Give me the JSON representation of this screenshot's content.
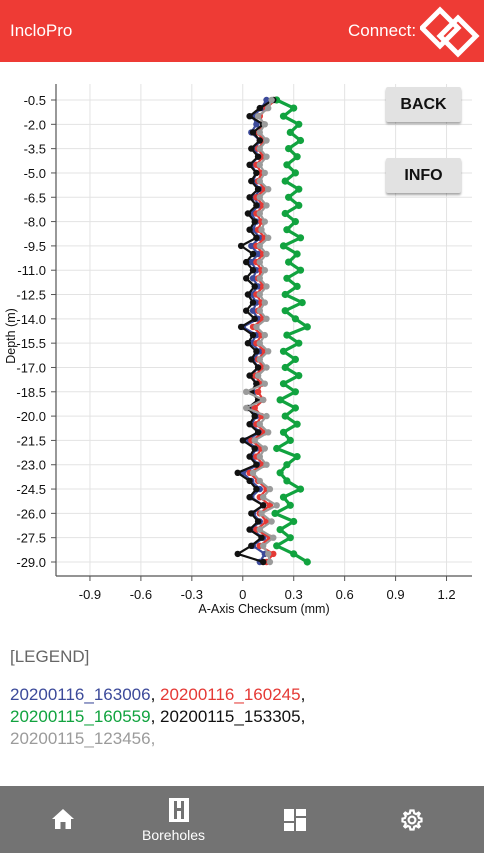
{
  "header": {
    "title": "IncloPro",
    "connect_label": "Connect:"
  },
  "buttons": {
    "back": "BACK",
    "info": "INFO"
  },
  "chart_data": {
    "type": "line",
    "title": "",
    "xlabel": "A-Axis Checksum (mm)",
    "ylabel": "Depth (m)",
    "xlim": [
      -1.1,
      1.35
    ],
    "ylim": [
      0.5,
      -29.0
    ],
    "x_ticks": [
      "-0.9",
      "-0.6",
      "-0.3",
      "0",
      "0.3",
      "0.6",
      "0.9",
      "1.2"
    ],
    "y_ticks": [
      "-0.5",
      "-2.0",
      "-3.5",
      "-5.0",
      "-6.5",
      "-8.0",
      "-9.5",
      "-11.0",
      "-12.5",
      "-14.0",
      "-15.5",
      "-17.0",
      "-18.5",
      "-20.0",
      "-21.5",
      "-23.0",
      "-24.5",
      "-26.0",
      "-27.5",
      "-29.0"
    ],
    "grid": true,
    "depth": [
      -0.5,
      -1.0,
      -1.5,
      -2.0,
      -2.5,
      -3.0,
      -3.5,
      -4.0,
      -4.5,
      -5.0,
      -5.5,
      -6.0,
      -6.5,
      -7.0,
      -7.5,
      -8.0,
      -8.5,
      -9.0,
      -9.5,
      -10.0,
      -10.5,
      -11.0,
      -11.5,
      -12.0,
      -12.5,
      -13.0,
      -13.5,
      -14.0,
      -14.5,
      -15.0,
      -15.5,
      -16.0,
      -16.5,
      -17.0,
      -17.5,
      -18.0,
      -18.5,
      -19.0,
      -19.5,
      -20.0,
      -20.5,
      -21.0,
      -21.5,
      -22.0,
      -22.5,
      -23.0,
      -23.5,
      -24.0,
      -24.5,
      -25.0,
      -25.5,
      -26.0,
      -26.5,
      -27.0,
      -27.5,
      -28.0,
      -28.5,
      -29.0
    ],
    "series": [
      {
        "name": "20200116_163006",
        "color": "#3c4a9a",
        "values": [
          0.14,
          0.11,
          0.06,
          0.08,
          0.05,
          0.1,
          0.07,
          0.09,
          0.05,
          0.08,
          0.06,
          0.1,
          0.07,
          0.09,
          0.05,
          0.08,
          0.06,
          0.1,
          0.05,
          0.09,
          0.05,
          0.08,
          0.06,
          0.09,
          0.05,
          0.08,
          0.06,
          0.09,
          0.0,
          0.08,
          0.05,
          0.1,
          0.06,
          0.09,
          0.05,
          0.08,
          0.06,
          0.09,
          0.04,
          0.08,
          0.05,
          0.1,
          0.02,
          0.08,
          0.05,
          0.09,
          0.0,
          0.05,
          0.1,
          0.05,
          0.12,
          0.06,
          0.1,
          0.05,
          0.12,
          0.06,
          0.13,
          0.1
        ]
      },
      {
        "name": "20200116_160245",
        "color": "#e53935",
        "values": [
          0.19,
          0.14,
          0.1,
          0.12,
          0.08,
          0.13,
          0.09,
          0.12,
          0.08,
          0.11,
          0.09,
          0.13,
          0.08,
          0.12,
          0.08,
          0.11,
          0.09,
          0.13,
          0.08,
          0.12,
          0.08,
          0.11,
          0.09,
          0.12,
          0.08,
          0.11,
          0.09,
          0.12,
          0.06,
          0.11,
          0.08,
          0.13,
          0.09,
          0.12,
          0.07,
          0.11,
          0.09,
          0.12,
          0.07,
          0.11,
          0.08,
          0.13,
          0.05,
          0.11,
          0.08,
          0.12,
          0.04,
          0.09,
          0.14,
          0.1,
          0.16,
          0.1,
          0.14,
          0.08,
          0.16,
          0.1,
          0.18,
          0.14
        ]
      },
      {
        "name": "20200115_160559",
        "color": "#11a33f",
        "values": [
          0.2,
          0.3,
          0.24,
          0.33,
          0.28,
          0.34,
          0.27,
          0.32,
          0.26,
          0.31,
          0.25,
          0.33,
          0.27,
          0.33,
          0.25,
          0.31,
          0.26,
          0.34,
          0.24,
          0.32,
          0.27,
          0.34,
          0.26,
          0.32,
          0.25,
          0.35,
          0.25,
          0.31,
          0.38,
          0.26,
          0.33,
          0.24,
          0.31,
          0.25,
          0.33,
          0.24,
          0.31,
          0.22,
          0.31,
          0.25,
          0.32,
          0.24,
          0.28,
          0.2,
          0.32,
          0.26,
          0.22,
          0.26,
          0.34,
          0.24,
          0.28,
          0.19,
          0.3,
          0.22,
          0.28,
          0.2,
          0.3,
          0.38
        ]
      },
      {
        "name": "20200115_153305",
        "color": "#111111",
        "values": [
          0.18,
          0.1,
          0.04,
          0.12,
          0.06,
          0.1,
          0.05,
          0.09,
          0.04,
          0.08,
          0.05,
          0.09,
          0.04,
          0.08,
          0.03,
          0.07,
          0.04,
          0.08,
          -0.01,
          0.06,
          0.02,
          0.06,
          0.02,
          0.07,
          0.03,
          0.06,
          0.02,
          0.07,
          -0.01,
          0.06,
          0.03,
          0.08,
          0.05,
          0.09,
          0.04,
          0.08,
          0.05,
          0.09,
          0.03,
          0.07,
          0.04,
          0.09,
          0.0,
          0.07,
          0.04,
          0.08,
          -0.03,
          0.04,
          0.08,
          0.04,
          0.12,
          0.05,
          0.09,
          0.04,
          0.11,
          0.05,
          -0.03,
          0.12
        ]
      },
      {
        "name": "20200115_123456",
        "color": "#9b9b9b",
        "values": [
          0.17,
          0.15,
          0.09,
          0.13,
          0.1,
          0.14,
          0.1,
          0.14,
          0.1,
          0.13,
          0.1,
          0.15,
          0.1,
          0.14,
          0.1,
          0.13,
          0.11,
          0.15,
          0.1,
          0.14,
          0.1,
          0.13,
          0.1,
          0.14,
          0.1,
          0.13,
          0.1,
          0.14,
          0.08,
          0.13,
          0.1,
          0.15,
          0.1,
          0.14,
          0.09,
          0.13,
          0.02,
          0.12,
          0.02,
          0.14,
          0.1,
          0.15,
          0.07,
          0.13,
          0.1,
          0.14,
          0.06,
          0.1,
          0.16,
          0.12,
          0.2,
          0.11,
          0.17,
          0.1,
          0.18,
          0.12,
          0.15,
          0.16
        ]
      }
    ]
  },
  "legend": {
    "title": "[LEGEND]",
    "entries": [
      {
        "name": "20200116_163006",
        "color": "#3c4a9a"
      },
      {
        "name": "20200116_160245",
        "color": "#e53935"
      },
      {
        "name": "20200115_160559",
        "color": "#11a33f"
      },
      {
        "name": "20200115_153305",
        "color": "#111111"
      },
      {
        "name": "20200115_123456",
        "color": "#9b9b9b"
      }
    ]
  },
  "nav": {
    "home_icon": "home-icon",
    "boreholes_label": "Boreholes",
    "boreholes_icon": "borehole-icon",
    "dashboard_icon": "grid-icon",
    "settings_icon": "gear-icon"
  },
  "colors": {
    "header": "#ee3b35",
    "nav": "#737373"
  }
}
